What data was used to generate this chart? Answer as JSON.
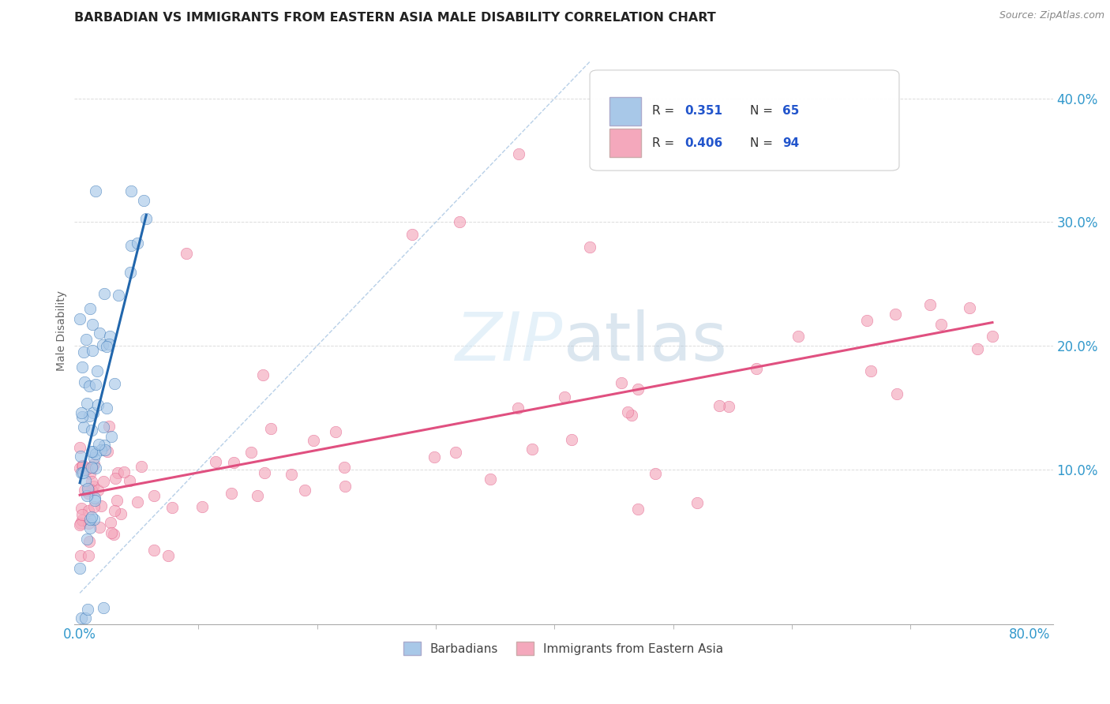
{
  "title": "BARBADIAN VS IMMIGRANTS FROM EASTERN ASIA MALE DISABILITY CORRELATION CHART",
  "source": "Source: ZipAtlas.com",
  "xlabel_barbadians": "Barbadians",
  "xlabel_eastern_asia": "Immigrants from Eastern Asia",
  "ylabel": "Male Disability",
  "legend_r1_val": "0.351",
  "legend_n1_val": "65",
  "legend_r2_val": "0.406",
  "legend_n2_val": "94",
  "xlim": [
    -0.005,
    0.82
  ],
  "ylim": [
    -0.025,
    0.45
  ],
  "color_blue": "#a8c8e8",
  "color_pink": "#f4a8bc",
  "color_blue_line": "#2166ac",
  "color_pink_line": "#e05080",
  "color_diag_line": "#a0c0e0",
  "bg_color": "#ffffff"
}
